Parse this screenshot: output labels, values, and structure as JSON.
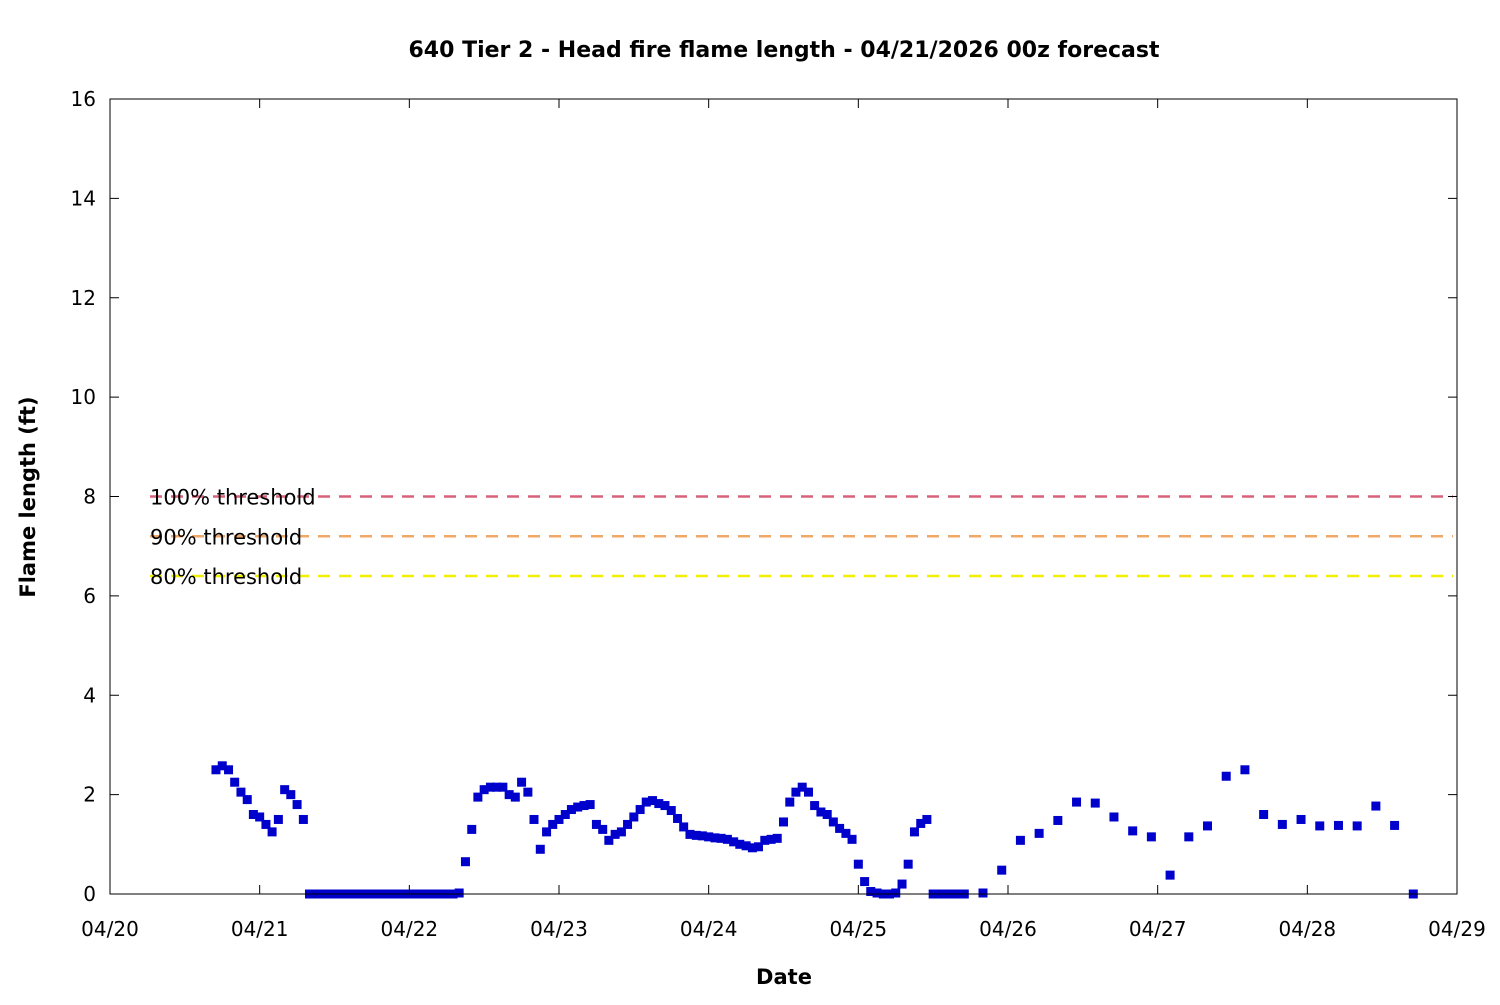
{
  "chart_data": {
    "type": "scatter",
    "title": "640 Tier 2 - Head fire flame length - 04/21/2026 00z forecast",
    "xlabel": "Date",
    "ylabel": "Flame length (ft)",
    "xlim": [
      "04/20",
      "04/29"
    ],
    "ylim": [
      0,
      16
    ],
    "x_ticks": [
      "04/20",
      "04/21",
      "04/22",
      "04/23",
      "04/24",
      "04/25",
      "04/26",
      "04/27",
      "04/28",
      "04/29"
    ],
    "y_ticks": [
      "0",
      "2",
      "4",
      "6",
      "8",
      "10",
      "12",
      "14",
      "16"
    ],
    "grid": false,
    "thresholds": [
      {
        "label": "100% threshold",
        "value": 8.0,
        "color": "#d9617a"
      },
      {
        "label": "90% threshold",
        "value": 7.2,
        "color": "#f0a868"
      },
      {
        "label": "80% threshold",
        "value": 6.4,
        "color": "#f0f000"
      }
    ],
    "series": [
      {
        "color": "#0000cc",
        "x_unit": "days after 04/20 00:00",
        "points": [
          [
            0.708,
            2.5
          ],
          [
            0.75,
            2.58
          ],
          [
            0.792,
            2.5
          ],
          [
            0.833,
            2.25
          ],
          [
            0.875,
            2.05
          ],
          [
            0.917,
            1.9
          ],
          [
            0.958,
            1.6
          ],
          [
            1.0,
            1.55
          ],
          [
            1.042,
            1.4
          ],
          [
            1.083,
            1.25
          ],
          [
            1.125,
            1.5
          ],
          [
            1.167,
            2.1
          ],
          [
            1.208,
            2.0
          ],
          [
            1.25,
            1.8
          ],
          [
            1.292,
            1.5
          ],
          [
            1.333,
            0
          ],
          [
            1.375,
            0
          ],
          [
            1.417,
            0
          ],
          [
            1.458,
            0
          ],
          [
            1.5,
            0
          ],
          [
            1.542,
            0
          ],
          [
            1.583,
            0
          ],
          [
            1.625,
            0
          ],
          [
            1.667,
            0
          ],
          [
            1.708,
            0
          ],
          [
            1.75,
            0
          ],
          [
            1.792,
            0
          ],
          [
            1.833,
            0
          ],
          [
            1.875,
            0
          ],
          [
            1.917,
            0
          ],
          [
            1.958,
            0
          ],
          [
            2.0,
            0
          ],
          [
            2.042,
            0
          ],
          [
            2.083,
            0
          ],
          [
            2.125,
            0
          ],
          [
            2.167,
            0
          ],
          [
            2.208,
            0
          ],
          [
            2.25,
            0
          ],
          [
            2.292,
            0
          ],
          [
            2.333,
            0.02
          ],
          [
            2.375,
            0.65
          ],
          [
            2.417,
            1.3
          ],
          [
            2.458,
            1.95
          ],
          [
            2.5,
            2.1
          ],
          [
            2.542,
            2.15
          ],
          [
            2.583,
            2.15
          ],
          [
            2.625,
            2.15
          ],
          [
            2.667,
            2.0
          ],
          [
            2.708,
            1.95
          ],
          [
            2.75,
            2.25
          ],
          [
            2.792,
            2.05
          ],
          [
            2.833,
            1.5
          ],
          [
            2.875,
            0.9
          ],
          [
            2.917,
            1.25
          ],
          [
            2.958,
            1.4
          ],
          [
            3.0,
            1.5
          ],
          [
            3.042,
            1.6
          ],
          [
            3.083,
            1.7
          ],
          [
            3.125,
            1.75
          ],
          [
            3.167,
            1.78
          ],
          [
            3.208,
            1.8
          ],
          [
            3.25,
            1.4
          ],
          [
            3.292,
            1.3
          ],
          [
            3.333,
            1.08
          ],
          [
            3.375,
            1.2
          ],
          [
            3.417,
            1.25
          ],
          [
            3.458,
            1.4
          ],
          [
            3.5,
            1.55
          ],
          [
            3.542,
            1.7
          ],
          [
            3.583,
            1.85
          ],
          [
            3.625,
            1.88
          ],
          [
            3.667,
            1.82
          ],
          [
            3.708,
            1.78
          ],
          [
            3.75,
            1.68
          ],
          [
            3.792,
            1.52
          ],
          [
            3.833,
            1.35
          ],
          [
            3.875,
            1.2
          ],
          [
            3.917,
            1.18
          ],
          [
            3.958,
            1.17
          ],
          [
            4.0,
            1.15
          ],
          [
            4.042,
            1.13
          ],
          [
            4.083,
            1.12
          ],
          [
            4.125,
            1.1
          ],
          [
            4.167,
            1.05
          ],
          [
            4.208,
            1.0
          ],
          [
            4.25,
            0.97
          ],
          [
            4.292,
            0.93
          ],
          [
            4.333,
            0.95
          ],
          [
            4.375,
            1.08
          ],
          [
            4.417,
            1.1
          ],
          [
            4.458,
            1.12
          ],
          [
            4.5,
            1.45
          ],
          [
            4.542,
            1.85
          ],
          [
            4.583,
            2.05
          ],
          [
            4.625,
            2.15
          ],
          [
            4.667,
            2.05
          ],
          [
            4.708,
            1.78
          ],
          [
            4.75,
            1.65
          ],
          [
            4.792,
            1.6
          ],
          [
            4.833,
            1.45
          ],
          [
            4.875,
            1.32
          ],
          [
            4.917,
            1.22
          ],
          [
            4.958,
            1.1
          ],
          [
            5.0,
            0.6
          ],
          [
            5.042,
            0.25
          ],
          [
            5.083,
            0.05
          ],
          [
            5.125,
            0.02
          ],
          [
            5.167,
            0.0
          ],
          [
            5.208,
            0.0
          ],
          [
            5.25,
            0.02
          ],
          [
            5.292,
            0.2
          ],
          [
            5.333,
            0.6
          ],
          [
            5.375,
            1.25
          ],
          [
            5.417,
            1.42
          ],
          [
            5.458,
            1.5
          ],
          [
            5.5,
            0
          ],
          [
            5.542,
            0
          ],
          [
            5.583,
            0
          ],
          [
            5.625,
            0
          ],
          [
            5.667,
            0
          ],
          [
            5.708,
            0
          ],
          [
            5.833,
            0.02
          ],
          [
            5.958,
            0.48
          ],
          [
            6.083,
            1.08
          ],
          [
            6.208,
            1.22
          ],
          [
            6.333,
            1.48
          ],
          [
            6.458,
            1.85
          ],
          [
            6.583,
            1.83
          ],
          [
            6.708,
            1.55
          ],
          [
            6.833,
            1.27
          ],
          [
            6.958,
            1.15
          ],
          [
            7.083,
            0.38
          ],
          [
            7.208,
            1.15
          ],
          [
            7.333,
            1.37
          ],
          [
            7.458,
            2.37
          ],
          [
            7.583,
            2.5
          ],
          [
            7.708,
            1.6
          ],
          [
            7.833,
            1.4
          ],
          [
            7.958,
            1.5
          ],
          [
            8.083,
            1.37
          ],
          [
            8.208,
            1.38
          ],
          [
            8.333,
            1.37
          ],
          [
            8.458,
            1.77
          ],
          [
            8.583,
            1.38
          ],
          [
            8.708,
            0
          ]
        ]
      }
    ]
  }
}
